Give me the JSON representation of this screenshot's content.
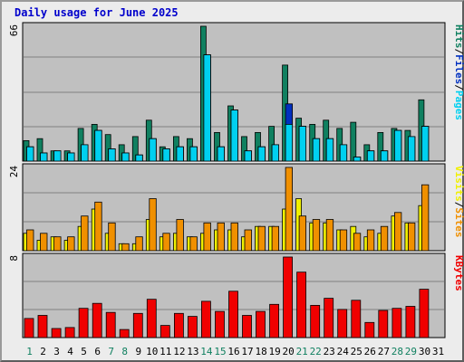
{
  "title": "Daily usage for June 2025",
  "colors": {
    "hits": "#108060",
    "files": "#0030c0",
    "pages": "#00d0f0",
    "visits": "#f0f000",
    "sites": "#f09000",
    "kbytes": "#f00000",
    "weekend": "#108060",
    "weekday": "#000000",
    "panel": "#c0c0c0"
  },
  "chart_data": [
    {
      "type": "bar",
      "name": "top",
      "ytick": "66",
      "ymax": 66,
      "legend": [
        "Pages",
        "Files",
        "Hits"
      ],
      "series": [
        {
          "name": "Hits",
          "values": [
            10,
            11,
            5,
            5,
            16,
            18,
            13,
            8,
            12,
            20,
            7,
            12,
            11,
            66,
            14,
            27,
            12,
            14,
            17,
            47,
            21,
            18,
            20,
            16,
            19,
            8,
            14,
            16,
            15,
            30,
            0
          ]
        },
        {
          "name": "Files",
          "values": [
            7,
            4,
            5,
            4,
            8,
            15,
            6,
            4,
            3,
            11,
            6,
            7,
            7,
            52,
            7,
            25,
            5,
            7,
            8,
            28,
            17,
            11,
            11,
            8,
            2,
            5,
            5,
            15,
            12,
            17,
            0
          ]
        },
        {
          "name": "Pages",
          "values": [
            7,
            4,
            5,
            4,
            8,
            15,
            6,
            4,
            3,
            11,
            6,
            7,
            7,
            52,
            7,
            25,
            5,
            7,
            8,
            18,
            17,
            11,
            11,
            8,
            2,
            5,
            5,
            15,
            12,
            17,
            0
          ]
        }
      ],
      "categories": [
        "1",
        "2",
        "3",
        "4",
        "5",
        "6",
        "7",
        "8",
        "9",
        "10",
        "11",
        "12",
        "13",
        "14",
        "15",
        "16",
        "17",
        "18",
        "19",
        "20",
        "21",
        "22",
        "23",
        "24",
        "25",
        "26",
        "27",
        "28",
        "29",
        "30",
        "31"
      ]
    },
    {
      "type": "bar",
      "name": "middle",
      "ytick": "24",
      "ymax": 24,
      "legend": [
        "Sites",
        "Visits"
      ],
      "series": [
        {
          "name": "Visits",
          "values": [
            5,
            3,
            4,
            3,
            7,
            12,
            5,
            2,
            2,
            9,
            4,
            5,
            4,
            5,
            6,
            6,
            4,
            7,
            7,
            12,
            15,
            8,
            8,
            6,
            7,
            4,
            5,
            10,
            8,
            13,
            0
          ]
        },
        {
          "name": "Sites",
          "values": [
            6,
            5,
            4,
            4,
            10,
            14,
            8,
            2,
            4,
            15,
            5,
            9,
            4,
            8,
            8,
            8,
            6,
            7,
            7,
            24,
            10,
            9,
            9,
            6,
            5,
            6,
            7,
            11,
            8,
            19,
            0
          ]
        }
      ],
      "categories": [
        "1",
        "2",
        "3",
        "4",
        "5",
        "6",
        "7",
        "8",
        "9",
        "10",
        "11",
        "12",
        "13",
        "14",
        "15",
        "16",
        "17",
        "18",
        "19",
        "20",
        "21",
        "22",
        "23",
        "24",
        "25",
        "26",
        "27",
        "28",
        "29",
        "30",
        "31"
      ]
    },
    {
      "type": "bar",
      "name": "bottom",
      "ytick": "8",
      "ymax": 8,
      "legend": [
        "KBytes"
      ],
      "series": [
        {
          "name": "KBytes",
          "values": [
            1.9,
            2.2,
            0.9,
            1.0,
            2.9,
            3.4,
            2.5,
            0.8,
            2.4,
            3.8,
            1.2,
            2.4,
            2.1,
            3.6,
            2.6,
            4.6,
            2.2,
            2.6,
            3.3,
            8.0,
            6.5,
            3.2,
            3.9,
            2.8,
            3.7,
            1.5,
            2.7,
            2.9,
            3.1,
            4.8,
            0
          ]
        }
      ],
      "categories": [
        "1",
        "2",
        "3",
        "4",
        "5",
        "6",
        "7",
        "8",
        "9",
        "10",
        "11",
        "12",
        "13",
        "14",
        "15",
        "16",
        "17",
        "18",
        "19",
        "20",
        "21",
        "22",
        "23",
        "24",
        "25",
        "26",
        "27",
        "28",
        "29",
        "30",
        "31"
      ]
    }
  ],
  "x_axis": {
    "labels": [
      "1",
      "2",
      "3",
      "4",
      "5",
      "6",
      "7",
      "8",
      "9",
      "10",
      "11",
      "12",
      "13",
      "14",
      "15",
      "16",
      "17",
      "18",
      "19",
      "20",
      "21",
      "22",
      "23",
      "24",
      "25",
      "26",
      "27",
      "28",
      "29",
      "30",
      "31"
    ],
    "weekend": [
      1,
      7,
      8,
      14,
      15,
      21,
      22,
      28,
      29
    ]
  }
}
